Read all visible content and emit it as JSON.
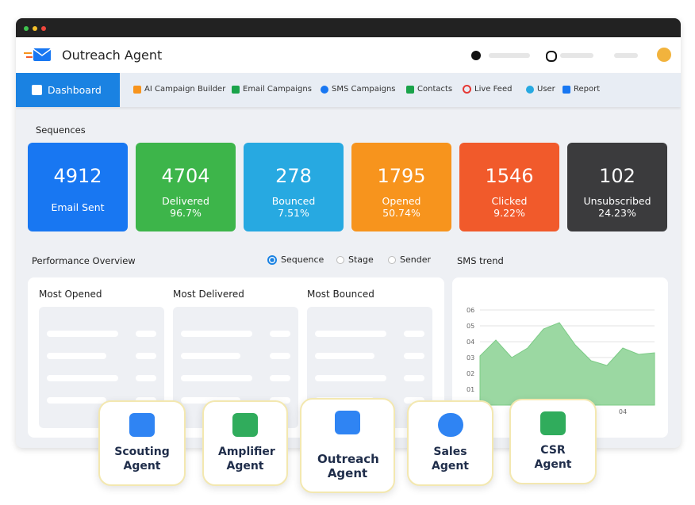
{
  "header": {
    "title": "Outreach Agent"
  },
  "nav": [
    "Dashboard",
    "AI Campaign Builder",
    "Email Campaigns",
    "SMS Campaigns",
    "Contacts",
    "Live Feed",
    "User",
    "Report"
  ],
  "sequences": {
    "title": "Sequences",
    "cards": [
      {
        "value": 4912,
        "label": "Email Sent",
        "color": "#1877f2"
      },
      {
        "value": 4704,
        "label": "Delivered",
        "pct": "96.7%",
        "color": "#3db54a"
      },
      {
        "value": 278,
        "label": "Bounced",
        "pct": "7.51%",
        "color": "#27a9e1"
      },
      {
        "value": 1795,
        "label": "Opened",
        "pct": "50.74%",
        "color": "#f7941d"
      },
      {
        "value": 1546,
        "label": "Clicked",
        "pct": "9.22%",
        "color": "#f15a2b"
      },
      {
        "value": 102,
        "label": "Unsubscribed",
        "pct": "24.23%",
        "color": "#3b3b3d"
      }
    ]
  },
  "performance": {
    "title": "Performance Overview",
    "options": [
      "Sequence",
      "Stage",
      "Sender"
    ],
    "panels": [
      "Most Opened",
      "Most Delivered",
      "Most Bounced"
    ]
  },
  "sms_trend": {
    "title": "SMS trend",
    "type": "area",
    "color": "#9bd8a2",
    "categories": [
      null,
      null,
      null,
      null,
      null,
      null,
      null,
      null,
      null,
      "04",
      null,
      null
    ],
    "values": [
      3.1,
      4.1,
      3,
      3.6,
      4.8,
      5.2,
      3.8,
      2.8,
      2.5,
      3.6,
      3.2,
      3.3
    ],
    "ylim": [
      0,
      6
    ],
    "yticks": [
      {
        "value": 1,
        "label": "01"
      },
      {
        "value": 2,
        "label": "02"
      },
      {
        "value": 3,
        "label": "03"
      },
      {
        "value": 4,
        "label": "04"
      },
      {
        "value": 5,
        "label": "05"
      },
      {
        "value": 6,
        "label": "06"
      }
    ]
  },
  "agents": [
    "Scouting Agent",
    "Amplifier Agent",
    "Outreach Agent",
    "Sales Agent",
    "CSR Agent"
  ]
}
